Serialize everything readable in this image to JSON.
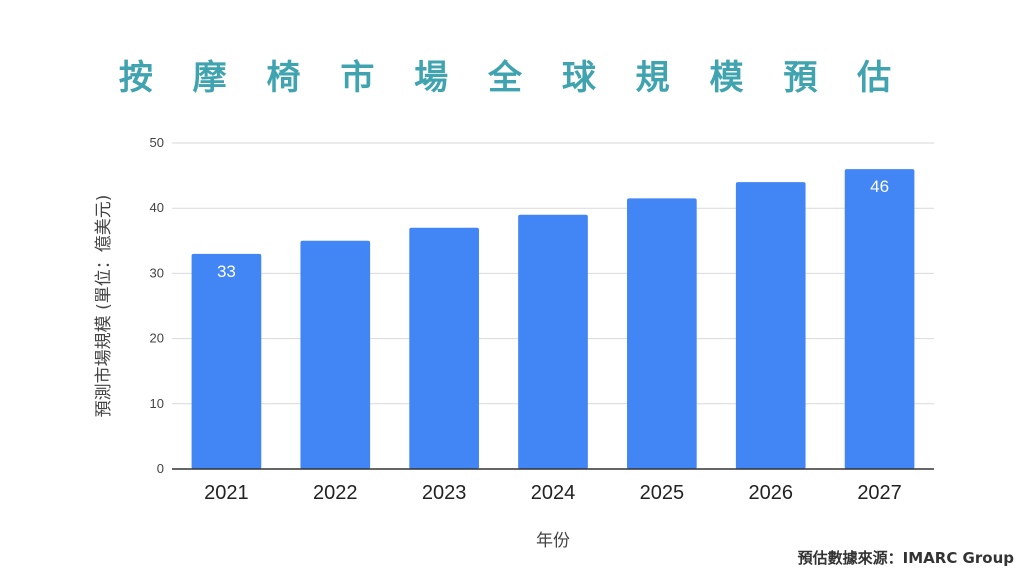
{
  "title": "按 摩 椅 市 場 全 球 規 模 預 估",
  "source": "預估數據來源：IMARC Group",
  "chart_data": {
    "type": "bar",
    "categories": [
      "2021",
      "2022",
      "2023",
      "2024",
      "2025",
      "2026",
      "2027"
    ],
    "values": [
      33,
      35,
      37,
      39,
      41.5,
      44,
      46
    ],
    "data_labels": [
      "33",
      "",
      "",
      "",
      "",
      "",
      "46"
    ],
    "xlabel": "年份",
    "ylabel": "預測市場規模 (單位：億美元)",
    "ylim": [
      0,
      50
    ],
    "yticks": [
      0,
      10,
      20,
      30,
      40,
      50
    ],
    "grid": true,
    "bar_color": "#4285f4",
    "grid_color": "#d9d9d9"
  }
}
